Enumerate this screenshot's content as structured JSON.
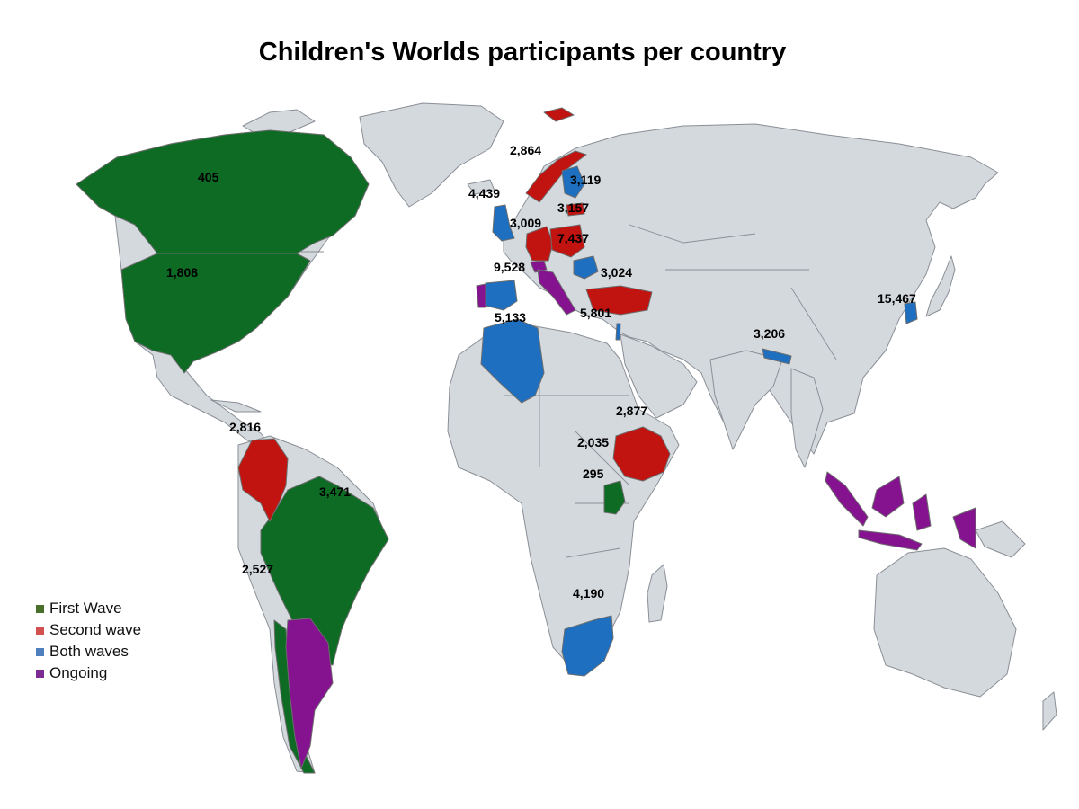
{
  "title": "Children's Worlds participants per country",
  "colors": {
    "first_wave": "#0e6b24",
    "second_wave": "#c1130f",
    "both_waves": "#1e6fbf",
    "ongoing": "#85138f",
    "land": "#d4d9de"
  },
  "legend": [
    {
      "label": "First Wave",
      "color": "#4a6e2c"
    },
    {
      "label": "Second wave",
      "color": "#d25050"
    },
    {
      "label": "Both waves",
      "color": "#4f80bd"
    },
    {
      "label": "Ongoing",
      "color": "#7d2a91"
    }
  ],
  "labels": {
    "norway": "2,864",
    "finland": "3,119",
    "estonia": "3,157",
    "uk": "4,439",
    "germany": "3,009",
    "poland": "7,437",
    "switzerland": "9,528",
    "romania": "3,024",
    "spain": "5,133",
    "turkey": "5,801",
    "korea": "15,467",
    "nepal": "3,206",
    "canada_north": "405",
    "usa": "1,808",
    "colombia": "2,816",
    "brazil": "3,471",
    "chile": "2,527",
    "israel": "2,877",
    "ethiopia": "2,035",
    "uganda": "295",
    "south_africa": "4,190"
  }
}
